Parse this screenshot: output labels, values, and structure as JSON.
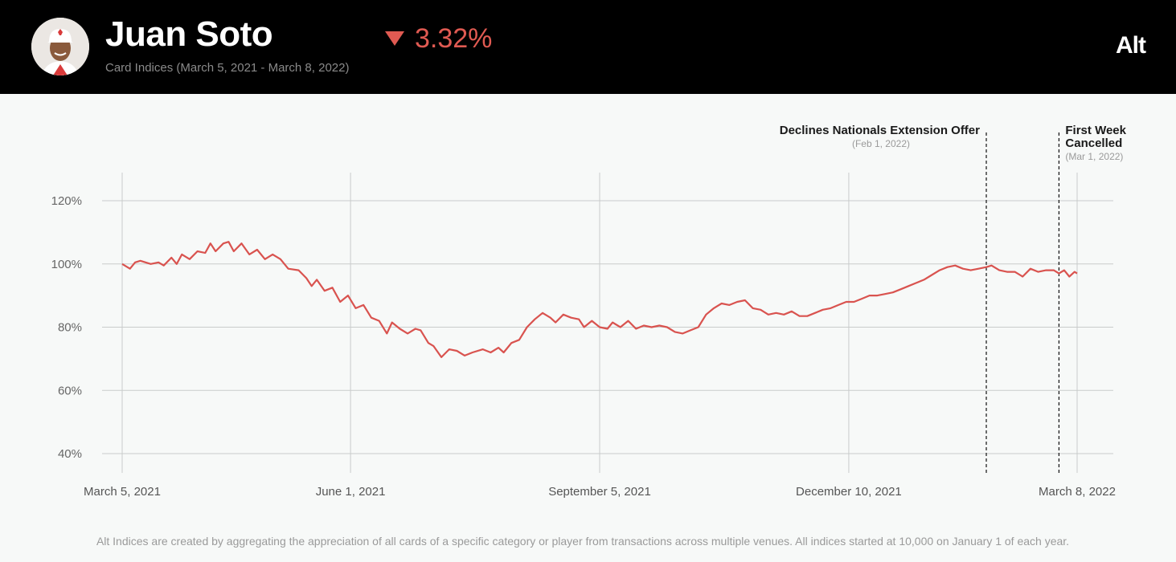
{
  "header": {
    "player_name": "Juan Soto",
    "subtitle": "Card Indices (March 5, 2021 - March 8, 2022)",
    "change_value": "3.32%",
    "change_direction": "down",
    "change_color": "#e05a52",
    "brand": "Alt",
    "avatar_icon": "player-avatar-icon",
    "arrow_icon": "triangle-down-icon"
  },
  "chart_data": {
    "type": "line",
    "title": "",
    "xlabel": "",
    "ylabel": "",
    "ylim": [
      40,
      120
    ],
    "y_ticks": [
      {
        "value": 120,
        "label": "120%"
      },
      {
        "value": 100,
        "label": "100%"
      },
      {
        "value": 80,
        "label": "80%"
      },
      {
        "value": 60,
        "label": "60%"
      },
      {
        "value": 40,
        "label": "40%"
      }
    ],
    "x_ticks": [
      {
        "date": "2021-03-05",
        "label": "March 5, 2021"
      },
      {
        "date": "2021-06-01",
        "label": "June 1, 2021"
      },
      {
        "date": "2021-09-05",
        "label": "September 5, 2021"
      },
      {
        "date": "2021-12-10",
        "label": "December 10, 2021"
      },
      {
        "date": "2022-03-08",
        "label": "March 8, 2022"
      }
    ],
    "grid": true,
    "series": [
      {
        "color": "#d9534f",
        "points": [
          [
            "2021-03-05",
            100
          ],
          [
            "2021-03-08",
            98.5
          ],
          [
            "2021-03-10",
            100.5
          ],
          [
            "2021-03-12",
            101
          ],
          [
            "2021-03-16",
            100
          ],
          [
            "2021-03-19",
            100.5
          ],
          [
            "2021-03-21",
            99.5
          ],
          [
            "2021-03-24",
            102
          ],
          [
            "2021-03-26",
            100
          ],
          [
            "2021-03-28",
            103
          ],
          [
            "2021-03-31",
            101.5
          ],
          [
            "2021-04-03",
            104
          ],
          [
            "2021-04-06",
            103.5
          ],
          [
            "2021-04-08",
            106.5
          ],
          [
            "2021-04-10",
            104
          ],
          [
            "2021-04-13",
            106.5
          ],
          [
            "2021-04-15",
            107
          ],
          [
            "2021-04-17",
            104
          ],
          [
            "2021-04-20",
            106.5
          ],
          [
            "2021-04-23",
            103
          ],
          [
            "2021-04-26",
            104.5
          ],
          [
            "2021-04-29",
            101.5
          ],
          [
            "2021-05-02",
            103
          ],
          [
            "2021-05-05",
            101.5
          ],
          [
            "2021-05-08",
            98.5
          ],
          [
            "2021-05-12",
            98
          ],
          [
            "2021-05-15",
            95.5
          ],
          [
            "2021-05-17",
            93
          ],
          [
            "2021-05-19",
            95
          ],
          [
            "2021-05-22",
            91.5
          ],
          [
            "2021-05-25",
            92.5
          ],
          [
            "2021-05-28",
            88
          ],
          [
            "2021-05-31",
            90
          ],
          [
            "2021-06-03",
            86
          ],
          [
            "2021-06-06",
            87
          ],
          [
            "2021-06-09",
            83
          ],
          [
            "2021-06-12",
            82
          ],
          [
            "2021-06-15",
            78
          ],
          [
            "2021-06-17",
            81.5
          ],
          [
            "2021-06-20",
            79.5
          ],
          [
            "2021-06-23",
            78
          ],
          [
            "2021-06-26",
            79.5
          ],
          [
            "2021-06-28",
            79
          ],
          [
            "2021-07-01",
            75
          ],
          [
            "2021-07-03",
            74
          ],
          [
            "2021-07-06",
            70.5
          ],
          [
            "2021-07-09",
            73
          ],
          [
            "2021-07-12",
            72.5
          ],
          [
            "2021-07-15",
            71
          ],
          [
            "2021-07-18",
            72
          ],
          [
            "2021-07-22",
            73
          ],
          [
            "2021-07-25",
            72
          ],
          [
            "2021-07-28",
            73.5
          ],
          [
            "2021-07-30",
            72
          ],
          [
            "2021-08-02",
            75
          ],
          [
            "2021-08-05",
            76
          ],
          [
            "2021-08-08",
            80
          ],
          [
            "2021-08-11",
            82.5
          ],
          [
            "2021-08-14",
            84.5
          ],
          [
            "2021-08-17",
            83
          ],
          [
            "2021-08-19",
            81.5
          ],
          [
            "2021-08-22",
            84
          ],
          [
            "2021-08-25",
            83
          ],
          [
            "2021-08-28",
            82.5
          ],
          [
            "2021-08-30",
            80
          ],
          [
            "2021-09-02",
            82
          ],
          [
            "2021-09-05",
            80
          ],
          [
            "2021-09-08",
            79.5
          ],
          [
            "2021-09-10",
            81.5
          ],
          [
            "2021-09-13",
            80
          ],
          [
            "2021-09-16",
            82
          ],
          [
            "2021-09-19",
            79.5
          ],
          [
            "2021-09-22",
            80.5
          ],
          [
            "2021-09-25",
            80
          ],
          [
            "2021-09-28",
            80.5
          ],
          [
            "2021-10-01",
            80
          ],
          [
            "2021-10-04",
            78.5
          ],
          [
            "2021-10-07",
            78
          ],
          [
            "2021-10-10",
            79
          ],
          [
            "2021-10-13",
            80
          ],
          [
            "2021-10-16",
            84
          ],
          [
            "2021-10-19",
            86
          ],
          [
            "2021-10-22",
            87.5
          ],
          [
            "2021-10-25",
            87
          ],
          [
            "2021-10-28",
            88
          ],
          [
            "2021-10-31",
            88.5
          ],
          [
            "2021-11-03",
            86
          ],
          [
            "2021-11-06",
            85.5
          ],
          [
            "2021-11-09",
            84
          ],
          [
            "2021-11-12",
            84.5
          ],
          [
            "2021-11-15",
            84
          ],
          [
            "2021-11-18",
            85
          ],
          [
            "2021-11-21",
            83.5
          ],
          [
            "2021-11-24",
            83.5
          ],
          [
            "2021-11-27",
            84.5
          ],
          [
            "2021-11-30",
            85.5
          ],
          [
            "2021-12-03",
            86
          ],
          [
            "2021-12-06",
            87
          ],
          [
            "2021-12-09",
            88
          ],
          [
            "2021-12-12",
            88
          ],
          [
            "2021-12-15",
            89
          ],
          [
            "2021-12-18",
            90
          ],
          [
            "2021-12-21",
            90
          ],
          [
            "2021-12-24",
            90.5
          ],
          [
            "2021-12-27",
            91
          ],
          [
            "2021-12-30",
            92
          ],
          [
            "2022-01-02",
            93
          ],
          [
            "2022-01-05",
            94
          ],
          [
            "2022-01-08",
            95
          ],
          [
            "2022-01-11",
            96.5
          ],
          [
            "2022-01-14",
            98
          ],
          [
            "2022-01-17",
            99
          ],
          [
            "2022-01-20",
            99.5
          ],
          [
            "2022-01-23",
            98.5
          ],
          [
            "2022-01-26",
            98
          ],
          [
            "2022-01-29",
            98.5
          ],
          [
            "2022-02-01",
            99
          ],
          [
            "2022-02-03",
            99.5
          ],
          [
            "2022-02-06",
            98
          ],
          [
            "2022-02-09",
            97.5
          ],
          [
            "2022-02-12",
            97.5
          ],
          [
            "2022-02-15",
            96
          ],
          [
            "2022-02-18",
            98.5
          ],
          [
            "2022-02-21",
            97.5
          ],
          [
            "2022-02-24",
            98
          ],
          [
            "2022-02-27",
            98
          ],
          [
            "2022-03-01",
            97
          ],
          [
            "2022-03-03",
            98
          ],
          [
            "2022-03-05",
            96
          ],
          [
            "2022-03-07",
            97.5
          ],
          [
            "2022-03-08",
            97
          ]
        ]
      }
    ],
    "annotations": [
      {
        "date": "2022-02-01",
        "title_lines": [
          "Declines Nationals Extension Offer"
        ],
        "date_label": "(Feb 1, 2022)",
        "align": "right"
      },
      {
        "date": "2022-03-01",
        "title_lines": [
          "First Week",
          "Cancelled"
        ],
        "date_label": "(Mar 1, 2022)",
        "align": "left"
      }
    ]
  },
  "footer": {
    "note": "Alt Indices are created by aggregating the appreciation of all cards of a specific category or player from transactions across multiple venues. All indices started at 10,000 on January 1 of each year."
  }
}
